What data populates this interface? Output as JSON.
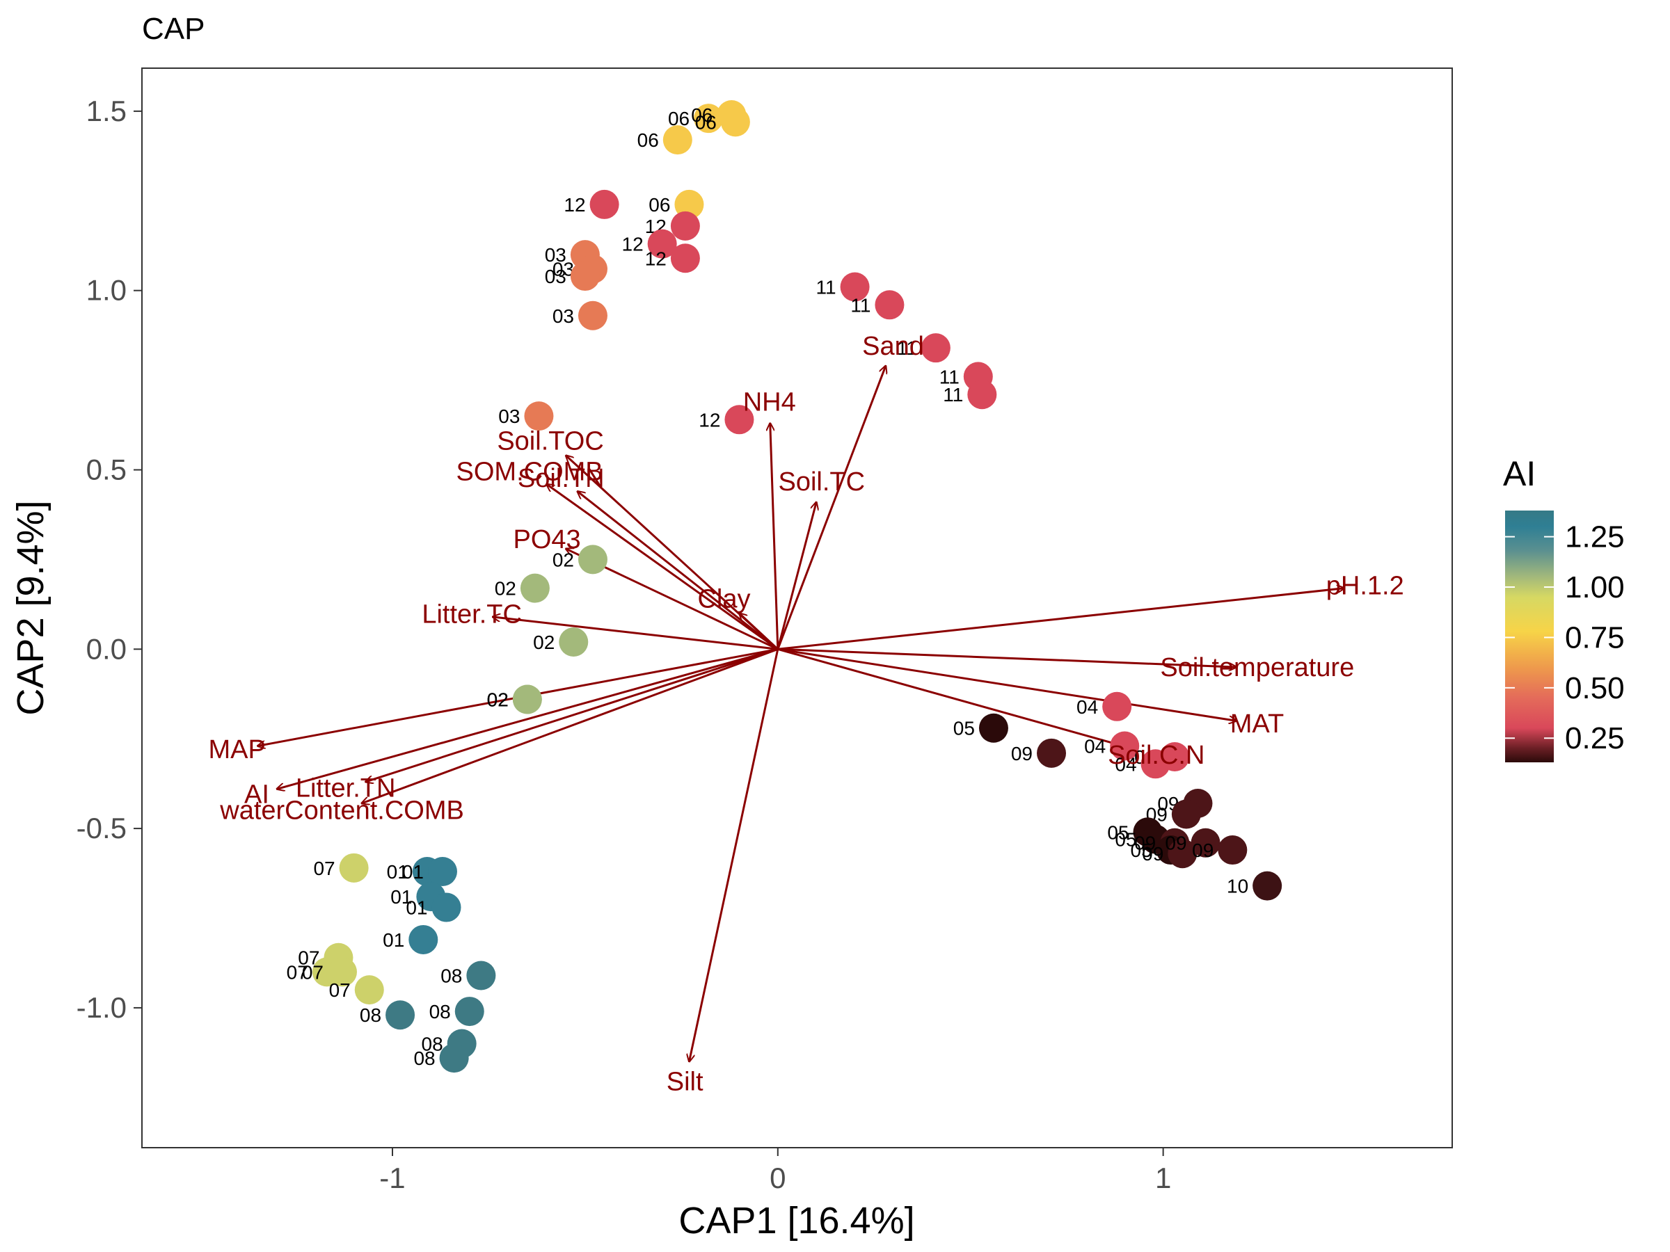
{
  "chart_data": {
    "type": "scatter",
    "title": "CAP",
    "xlabel": "CAP1   [16.4%]",
    "ylabel": "CAP2   [9.4%]",
    "xlim": [
      -1.65,
      1.75
    ],
    "ylim": [
      -1.39,
      1.62
    ],
    "x_ticks": [
      {
        "value": -1,
        "label": "-1"
      },
      {
        "value": 0,
        "label": "0"
      },
      {
        "value": 1,
        "label": "1"
      }
    ],
    "y_ticks": [
      {
        "value": 1.5,
        "label": "1.5"
      },
      {
        "value": 1.0,
        "label": "1.0"
      },
      {
        "value": 0.5,
        "label": "0.5"
      },
      {
        "value": 0.0,
        "label": "0.0"
      },
      {
        "value": -0.5,
        "label": "-0.5"
      },
      {
        "value": -1.0,
        "label": "-1.0"
      }
    ],
    "grid": false,
    "legend": {
      "title": "AI",
      "position": "right",
      "type": "colorbar",
      "range": [
        0.13,
        1.38
      ],
      "ticks": [
        {
          "value": 1.25,
          "label": "1.25"
        },
        {
          "value": 1.0,
          "label": "1.00"
        },
        {
          "value": 0.75,
          "label": "0.75"
        },
        {
          "value": 0.5,
          "label": "0.50"
        },
        {
          "value": 0.25,
          "label": "0.25"
        }
      ],
      "colors": [
        {
          "value": 0.13,
          "color": "#2b0a0a"
        },
        {
          "value": 0.2,
          "color": "#6b1f25"
        },
        {
          "value": 0.3,
          "color": "#d9485a"
        },
        {
          "value": 0.45,
          "color": "#e46b5a"
        },
        {
          "value": 0.6,
          "color": "#ee9a4c"
        },
        {
          "value": 0.78,
          "color": "#f7d448"
        },
        {
          "value": 0.95,
          "color": "#d6d863"
        },
        {
          "value": 1.05,
          "color": "#a3b97b"
        },
        {
          "value": 1.18,
          "color": "#5b9090"
        },
        {
          "value": 1.3,
          "color": "#2f7f94"
        },
        {
          "value": 1.38,
          "color": "#357a86"
        }
      ]
    },
    "points": [
      {
        "label": "06",
        "x": -0.26,
        "y": 1.42,
        "color": "#f6c94a"
      },
      {
        "label": "06",
        "x": -0.18,
        "y": 1.48,
        "color": "#f6c94a"
      },
      {
        "label": "06",
        "x": -0.12,
        "y": 1.49,
        "color": "#f6c94a"
      },
      {
        "label": "06",
        "x": -0.11,
        "y": 1.47,
        "color": "#f6c94a"
      },
      {
        "label": "06",
        "x": -0.23,
        "y": 1.24,
        "color": "#f6c94a"
      },
      {
        "label": "12",
        "x": -0.45,
        "y": 1.24,
        "color": "#d9485a"
      },
      {
        "label": "12",
        "x": -0.24,
        "y": 1.18,
        "color": "#d9485a"
      },
      {
        "label": "12",
        "x": -0.3,
        "y": 1.13,
        "color": "#d9485a"
      },
      {
        "label": "12",
        "x": -0.24,
        "y": 1.09,
        "color": "#d9485a"
      },
      {
        "label": "03",
        "x": -0.5,
        "y": 1.1,
        "color": "#e67a55"
      },
      {
        "label": "03",
        "x": -0.48,
        "y": 1.06,
        "color": "#e67a55"
      },
      {
        "label": "03",
        "x": -0.5,
        "y": 1.04,
        "color": "#e67a55"
      },
      {
        "label": "03",
        "x": -0.48,
        "y": 0.93,
        "color": "#e67a55"
      },
      {
        "label": "11",
        "x": 0.2,
        "y": 1.01,
        "color": "#d9485a"
      },
      {
        "label": "11",
        "x": 0.29,
        "y": 0.96,
        "color": "#d9485a"
      },
      {
        "label": "11",
        "x": 0.41,
        "y": 0.84,
        "color": "#d9485a"
      },
      {
        "label": "11",
        "x": 0.52,
        "y": 0.76,
        "color": "#d9485a"
      },
      {
        "label": "11",
        "x": 0.53,
        "y": 0.71,
        "color": "#d9485a"
      },
      {
        "label": "03",
        "x": -0.62,
        "y": 0.65,
        "color": "#e67a55"
      },
      {
        "label": "12",
        "x": -0.1,
        "y": 0.64,
        "color": "#d9485a"
      },
      {
        "label": "02",
        "x": -0.48,
        "y": 0.25,
        "color": "#a3b97b"
      },
      {
        "label": "02",
        "x": -0.63,
        "y": 0.17,
        "color": "#a3b97b"
      },
      {
        "label": "02",
        "x": -0.53,
        "y": 0.02,
        "color": "#a3b97b"
      },
      {
        "label": "02",
        "x": -0.65,
        "y": -0.14,
        "color": "#a3b97b"
      },
      {
        "label": "02",
        "x": -0.65,
        "y": -0.14,
        "color": "#a3b97b"
      },
      {
        "label": "04",
        "x": 0.88,
        "y": -0.16,
        "color": "#d9485a"
      },
      {
        "label": "05",
        "x": 0.56,
        "y": -0.22,
        "color": "#2b0a0a"
      },
      {
        "label": "09",
        "x": 0.71,
        "y": -0.29,
        "color": "#4d1518"
      },
      {
        "label": "04",
        "x": 0.9,
        "y": -0.27,
        "color": "#d9485a"
      },
      {
        "label": "04",
        "x": 1.03,
        "y": -0.3,
        "color": "#d9485a"
      },
      {
        "label": "04",
        "x": 0.98,
        "y": -0.32,
        "color": "#d9485a"
      },
      {
        "label": "09",
        "x": 1.09,
        "y": -0.43,
        "color": "#4d1518"
      },
      {
        "label": "09",
        "x": 1.06,
        "y": -0.46,
        "color": "#4d1518"
      },
      {
        "label": "05",
        "x": 0.96,
        "y": -0.51,
        "color": "#2b0a0a"
      },
      {
        "label": "05",
        "x": 0.98,
        "y": -0.53,
        "color": "#2b0a0a"
      },
      {
        "label": "09",
        "x": 1.03,
        "y": -0.54,
        "color": "#4d1518"
      },
      {
        "label": "05",
        "x": 1.02,
        "y": -0.56,
        "color": "#2b0a0a"
      },
      {
        "label": "09",
        "x": 1.05,
        "y": -0.57,
        "color": "#4d1518"
      },
      {
        "label": "09",
        "x": 1.11,
        "y": -0.54,
        "color": "#4d1518"
      },
      {
        "label": "09",
        "x": 1.18,
        "y": -0.56,
        "color": "#4d1518"
      },
      {
        "label": "10",
        "x": 1.27,
        "y": -0.66,
        "color": "#3d1214"
      },
      {
        "label": "07",
        "x": -1.1,
        "y": -0.61,
        "color": "#cdd16a"
      },
      {
        "label": "01",
        "x": -0.91,
        "y": -0.62,
        "color": "#357f93"
      },
      {
        "label": "01",
        "x": -0.87,
        "y": -0.62,
        "color": "#357f93"
      },
      {
        "label": "01",
        "x": -0.9,
        "y": -0.69,
        "color": "#357f93"
      },
      {
        "label": "01",
        "x": -0.86,
        "y": -0.72,
        "color": "#357f93"
      },
      {
        "label": "01",
        "x": -0.92,
        "y": -0.81,
        "color": "#357f93"
      },
      {
        "label": "07",
        "x": -1.14,
        "y": -0.86,
        "color": "#cdd16a"
      },
      {
        "label": "07",
        "x": -1.17,
        "y": -0.9,
        "color": "#cdd16a"
      },
      {
        "label": "07",
        "x": -1.13,
        "y": -0.9,
        "color": "#cdd16a"
      },
      {
        "label": "07",
        "x": -1.06,
        "y": -0.95,
        "color": "#cdd16a"
      },
      {
        "label": "08",
        "x": -0.77,
        "y": -0.91,
        "color": "#3e7a84"
      },
      {
        "label": "08",
        "x": -0.98,
        "y": -1.02,
        "color": "#3e7a84"
      },
      {
        "label": "08",
        "x": -0.8,
        "y": -1.01,
        "color": "#3e7a84"
      },
      {
        "label": "08",
        "x": -0.82,
        "y": -1.1,
        "color": "#3e7a84"
      },
      {
        "label": "08",
        "x": -0.84,
        "y": -1.14,
        "color": "#3e7a84"
      }
    ],
    "vectors": [
      {
        "name": "Sand",
        "x": 0.28,
        "y": 0.79
      },
      {
        "name": "NH4",
        "x": -0.02,
        "y": 0.63
      },
      {
        "name": "Soil.TC",
        "x": 0.1,
        "y": 0.41
      },
      {
        "name": "Soil.TOC",
        "x": -0.55,
        "y": 0.54
      },
      {
        "name": "SOM.COMB",
        "x": -0.6,
        "y": 0.46
      },
      {
        "name": "Soil.TN",
        "x": -0.52,
        "y": 0.44
      },
      {
        "name": "PO43",
        "x": -0.55,
        "y": 0.28
      },
      {
        "name": "Clay",
        "x": -0.1,
        "y": 0.1
      },
      {
        "name": "Litter.TC",
        "x": -0.74,
        "y": 0.09
      },
      {
        "name": "pH.1.2",
        "x": 1.47,
        "y": 0.17
      },
      {
        "name": "Soil.temperature",
        "x": 1.19,
        "y": -0.05
      },
      {
        "name": "MAT",
        "x": 1.19,
        "y": -0.2
      },
      {
        "name": "Soil.C.N",
        "x": 0.93,
        "y": -0.28
      },
      {
        "name": "MAP",
        "x": -1.35,
        "y": -0.27
      },
      {
        "name": "Litter.TN",
        "x": -1.07,
        "y": -0.37
      },
      {
        "name": "AI",
        "x": -1.3,
        "y": -0.39
      },
      {
        "name": "waterContent.COMB",
        "x": -1.08,
        "y": -0.43
      },
      {
        "name": "Silt",
        "x": -0.23,
        "y": -1.15
      }
    ]
  }
}
